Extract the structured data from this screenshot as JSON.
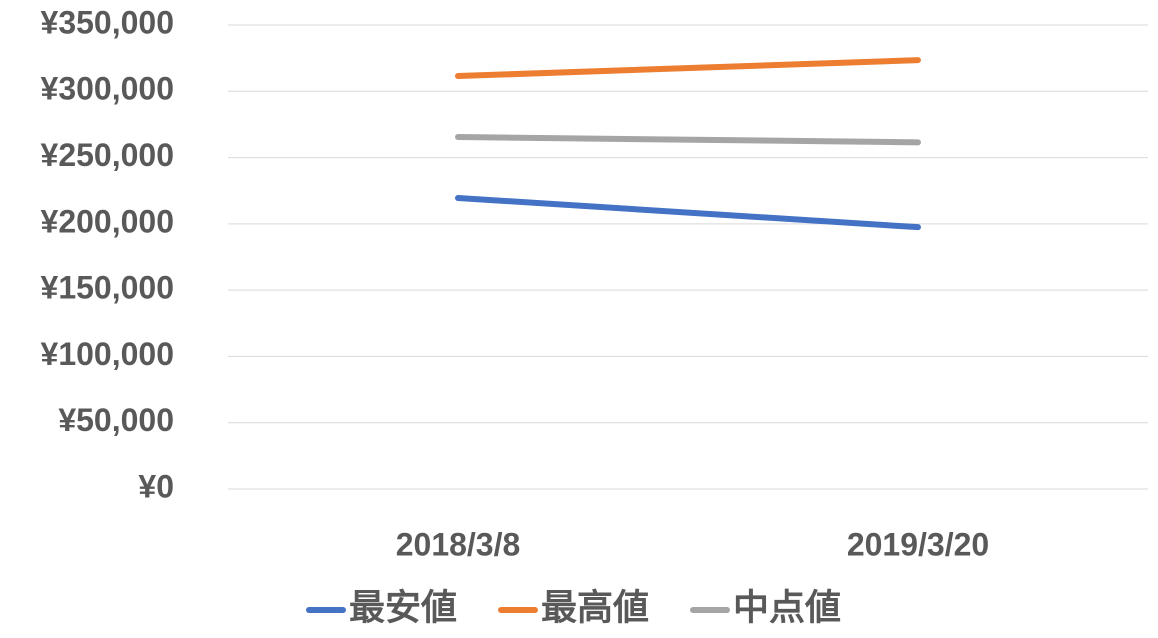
{
  "chart_data": {
    "type": "line",
    "categories": [
      "2018/3/8",
      "2019/3/20"
    ],
    "series": [
      {
        "name": "最安値",
        "color": "#4472c4",
        "values": [
          219500,
          197500
        ]
      },
      {
        "name": "最高値",
        "color": "#ed7d31",
        "values": [
          311500,
          323500
        ]
      },
      {
        "name": "中点値",
        "color": "#a5a5a5",
        "values": [
          265500,
          261500
        ]
      }
    ],
    "ylim": [
      0,
      350000
    ],
    "yticks": [
      {
        "value": 0,
        "label": "¥0"
      },
      {
        "value": 50000,
        "label": "¥50,000"
      },
      {
        "value": 100000,
        "label": "¥100,000"
      },
      {
        "value": 150000,
        "label": "¥150,000"
      },
      {
        "value": 200000,
        "label": "¥200,000"
      },
      {
        "value": 250000,
        "label": "¥250,000"
      },
      {
        "value": 300000,
        "label": "¥300,000"
      },
      {
        "value": 350000,
        "label": "¥350,000"
      }
    ],
    "grid": true,
    "legend": "bottom"
  }
}
